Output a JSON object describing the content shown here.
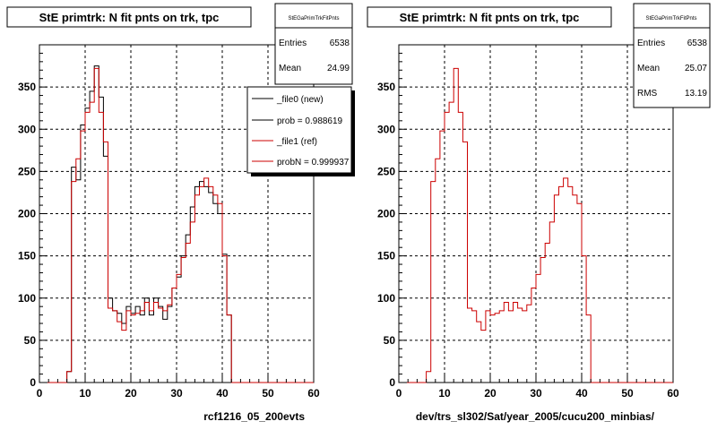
{
  "footer_text": "",
  "chart_data": [
    {
      "type": "histogram",
      "title": "StE primtrk: N fit pnts on trk, tpc",
      "xlabel": "rcf1216_05_200evts",
      "ylabel": "",
      "xlim": [
        0,
        60
      ],
      "ylim": [
        0,
        400
      ],
      "bin_width": 1,
      "x_ticks": [
        "0",
        "10",
        "20",
        "30",
        "40",
        "50",
        "60"
      ],
      "y_ticks": [
        "0",
        "50",
        "100",
        "150",
        "200",
        "250",
        "300",
        "350"
      ],
      "grid": true,
      "stats_box": {
        "header": "StEGaPrimTrkFitPnts",
        "rows": [
          {
            "label": "Entries",
            "value": "6538"
          },
          {
            "label": "Mean",
            "value": "24.99"
          }
        ]
      },
      "legend": {
        "position": "top-right",
        "entries": [
          {
            "label": "_file0 (new)",
            "color": "#000000"
          },
          {
            "label": "prob = 0.988619",
            "color": "#000000"
          },
          {
            "label": "_file1 (ref)",
            "color": "#cc0000"
          },
          {
            "label": "probN = 0.999937",
            "color": "#cc0000"
          }
        ]
      },
      "series": [
        {
          "name": "_file0 (new)",
          "color": "#000000",
          "bin_start": 6,
          "values": [
            13,
            255,
            240,
            305,
            325,
            345,
            375,
            338,
            268,
            100,
            85,
            82,
            70,
            90,
            82,
            90,
            80,
            100,
            80,
            100,
            90,
            75,
            90,
            112,
            125,
            150,
            175,
            208,
            232,
            238,
            232,
            225,
            212,
            200,
            152,
            80,
            0
          ]
        },
        {
          "name": "_file1 (ref)",
          "color": "#cc0000",
          "bin_start": 6,
          "values": [
            13,
            238,
            265,
            298,
            320,
            332,
            372,
            320,
            285,
            88,
            85,
            72,
            62,
            85,
            80,
            82,
            85,
            95,
            85,
            95,
            88,
            85,
            92,
            112,
            128,
            148,
            165,
            190,
            222,
            232,
            242,
            232,
            222,
            212,
            150,
            80,
            0
          ]
        }
      ]
    },
    {
      "type": "histogram",
      "title": "StE primtrk: N fit pnts on trk, tpc",
      "xlabel": "dev/trs_sl302/Sat/year_2005/cucu200_minbias/",
      "ylabel": "",
      "xlim": [
        0,
        60
      ],
      "ylim": [
        0,
        400
      ],
      "bin_width": 1,
      "x_ticks": [
        "0",
        "10",
        "20",
        "30",
        "40",
        "50",
        "60"
      ],
      "y_ticks": [
        "0",
        "50",
        "100",
        "150",
        "200",
        "250",
        "300",
        "350"
      ],
      "grid": true,
      "stats_box": {
        "header": "StEGaPrimTrkFitPnts",
        "rows": [
          {
            "label": "Entries",
            "value": "6538"
          },
          {
            "label": "Mean",
            "value": "25.07"
          },
          {
            "label": "RMS",
            "value": "13.19"
          }
        ]
      },
      "series": [
        {
          "name": "",
          "color": "#cc0000",
          "bin_start": 6,
          "values": [
            13,
            238,
            265,
            298,
            320,
            332,
            372,
            320,
            285,
            88,
            85,
            72,
            62,
            85,
            80,
            82,
            85,
            95,
            85,
            95,
            88,
            85,
            92,
            112,
            128,
            148,
            165,
            190,
            222,
            232,
            242,
            232,
            222,
            212,
            150,
            80,
            0
          ]
        }
      ]
    }
  ]
}
